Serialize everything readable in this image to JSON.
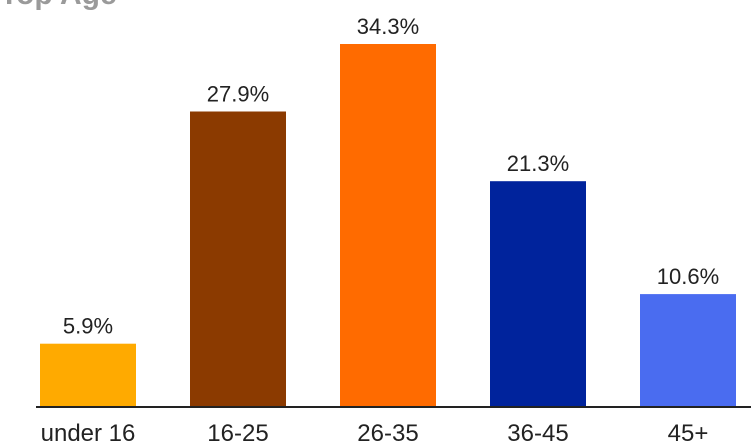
{
  "chart_data": {
    "type": "bar",
    "title": "",
    "xlabel": "",
    "ylabel": "",
    "categories": [
      "under 16",
      "16-25",
      "26-35",
      "36-45",
      "45+"
    ],
    "values": [
      5.9,
      27.9,
      34.3,
      21.3,
      10.6
    ],
    "data_labels": [
      "5.9%",
      "27.9%",
      "34.3%",
      "21.3%",
      "10.6%"
    ],
    "colors": [
      "#FFAA00",
      "#8B3A00",
      "#FF6B00",
      "#00239C",
      "#4A6CF0"
    ],
    "ylim": [
      0,
      34.3
    ],
    "grid": false,
    "legend": "none",
    "axis_color": "#222222"
  }
}
